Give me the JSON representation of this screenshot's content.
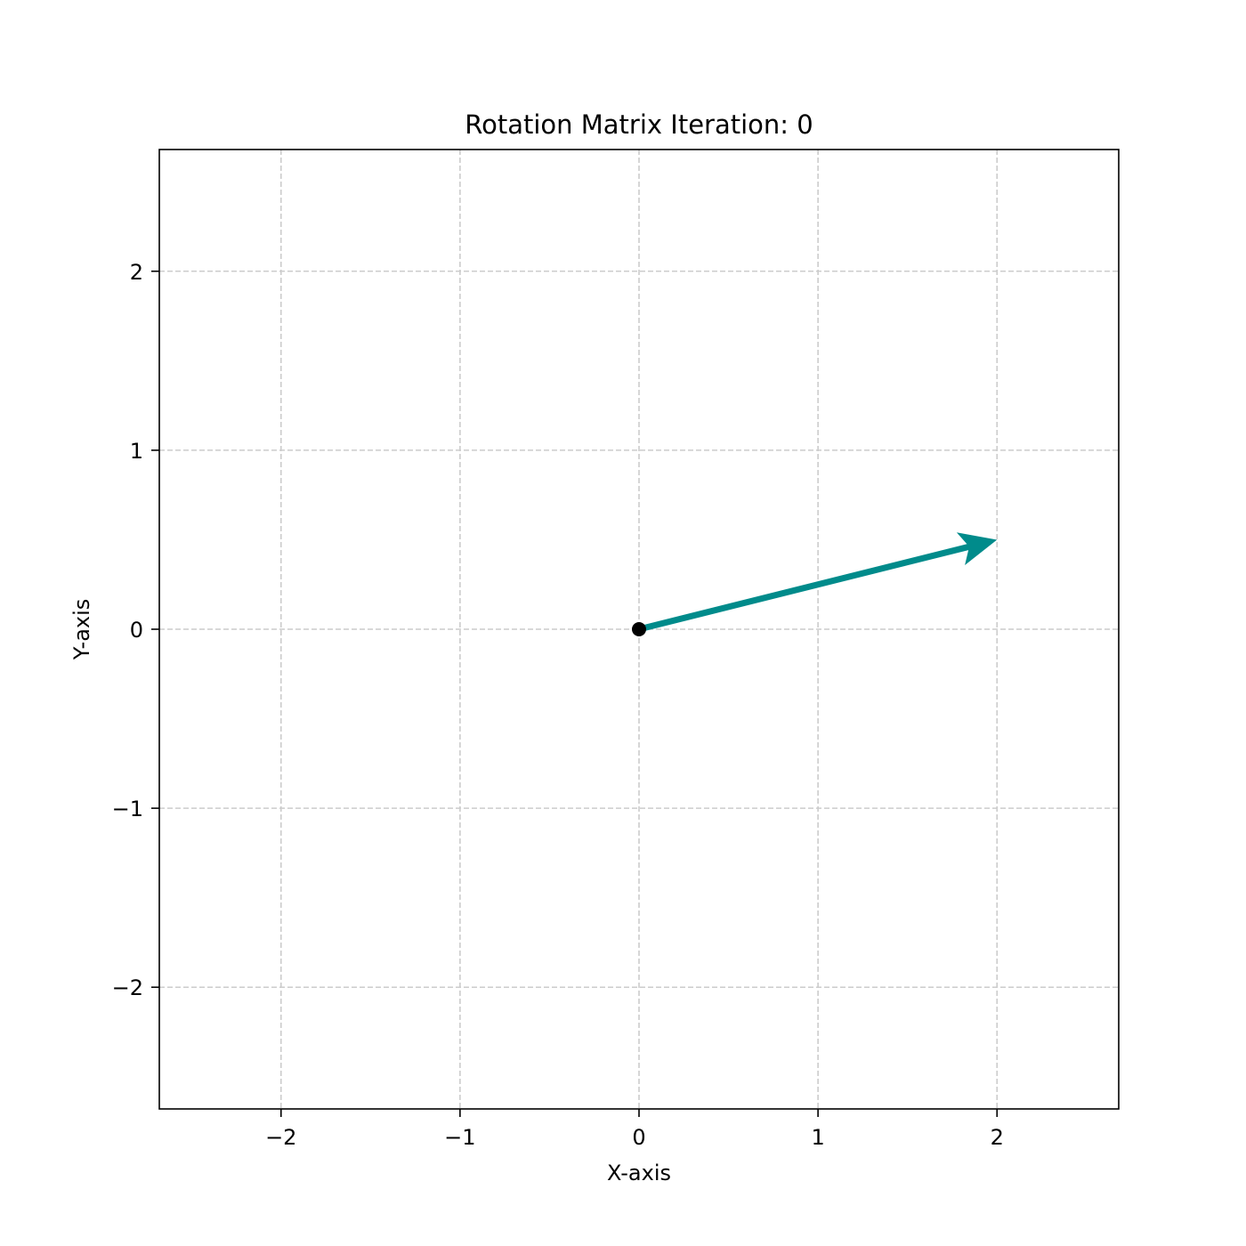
{
  "chart_data": {
    "type": "quiver",
    "title": "Rotation Matrix Iteration: 0",
    "xlabel": "X-axis",
    "ylabel": "Y-axis",
    "xlim": [
      -2.68,
      2.68
    ],
    "ylim": [
      -2.68,
      2.68
    ],
    "grid": true,
    "grid_style": "dashed",
    "x_ticks": [
      {
        "value": -2,
        "label": "−2"
      },
      {
        "value": -1,
        "label": "−1"
      },
      {
        "value": 0,
        "label": "0"
      },
      {
        "value": 1,
        "label": "1"
      },
      {
        "value": 2,
        "label": "2"
      }
    ],
    "y_ticks": [
      {
        "value": -2,
        "label": "−2"
      },
      {
        "value": -1,
        "label": "−1"
      },
      {
        "value": 0,
        "label": "0"
      },
      {
        "value": 1,
        "label": "1"
      },
      {
        "value": 2,
        "label": "2"
      }
    ],
    "vector": {
      "x0": 0,
      "y0": 0,
      "x1": 2,
      "y1": 0.5
    },
    "origin_point": {
      "x": 0,
      "y": 0
    },
    "colors": {
      "vector": "#008b8b",
      "origin": "#000000",
      "grid": "#cccccc",
      "frame": "#000000"
    }
  }
}
